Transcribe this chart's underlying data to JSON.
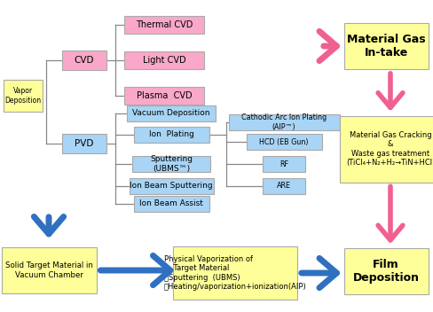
{
  "bg_color": "#ffffff",
  "pink_box_color": "#f9a8c9",
  "blue_box_color": "#a8d4f5",
  "yellow_box_color": "#ffff99",
  "pink_arrow_color": "#f06090",
  "blue_arrow_color": "#3070c0",
  "text_color": "#000000",
  "vapor_deposition_label": "Vapor\nDeposition",
  "cvd_label": "CVD",
  "pvd_label": "PVD",
  "cvd_items": [
    "Thermal CVD",
    "Light CVD",
    "Plasma  CVD"
  ],
  "pvd_items": [
    "Vacuum Deposition",
    "Ion  Plating",
    "Sputtering\n(UBMS™)",
    "Ion Beam Sputtering",
    "Ion Beam Assist"
  ],
  "ion_plating_items": [
    "Cathodic Arc Ion Plating\n(AIP™)",
    "HCD (EB Gun)",
    "RF",
    "ARE"
  ],
  "right_box1_label": "Material Gas\nIn-take",
  "right_box2_label": "Material Gas Cracking\n&\nWaste gas treatment\n(TiCl₄+N₂+H₂→TiN+HCl)",
  "right_box3_label": "Film\nDeposition",
  "bottom_left_box": "Solid Target Material in\nVacuum Chamber",
  "bottom_center_box": "Physical Vaporization of\n    Target Material\n・Sputtering  (UBMS)\n・Heating/vaporization+ionization(AIP)",
  "figsize": [
    4.88,
    3.52
  ],
  "dpi": 100
}
